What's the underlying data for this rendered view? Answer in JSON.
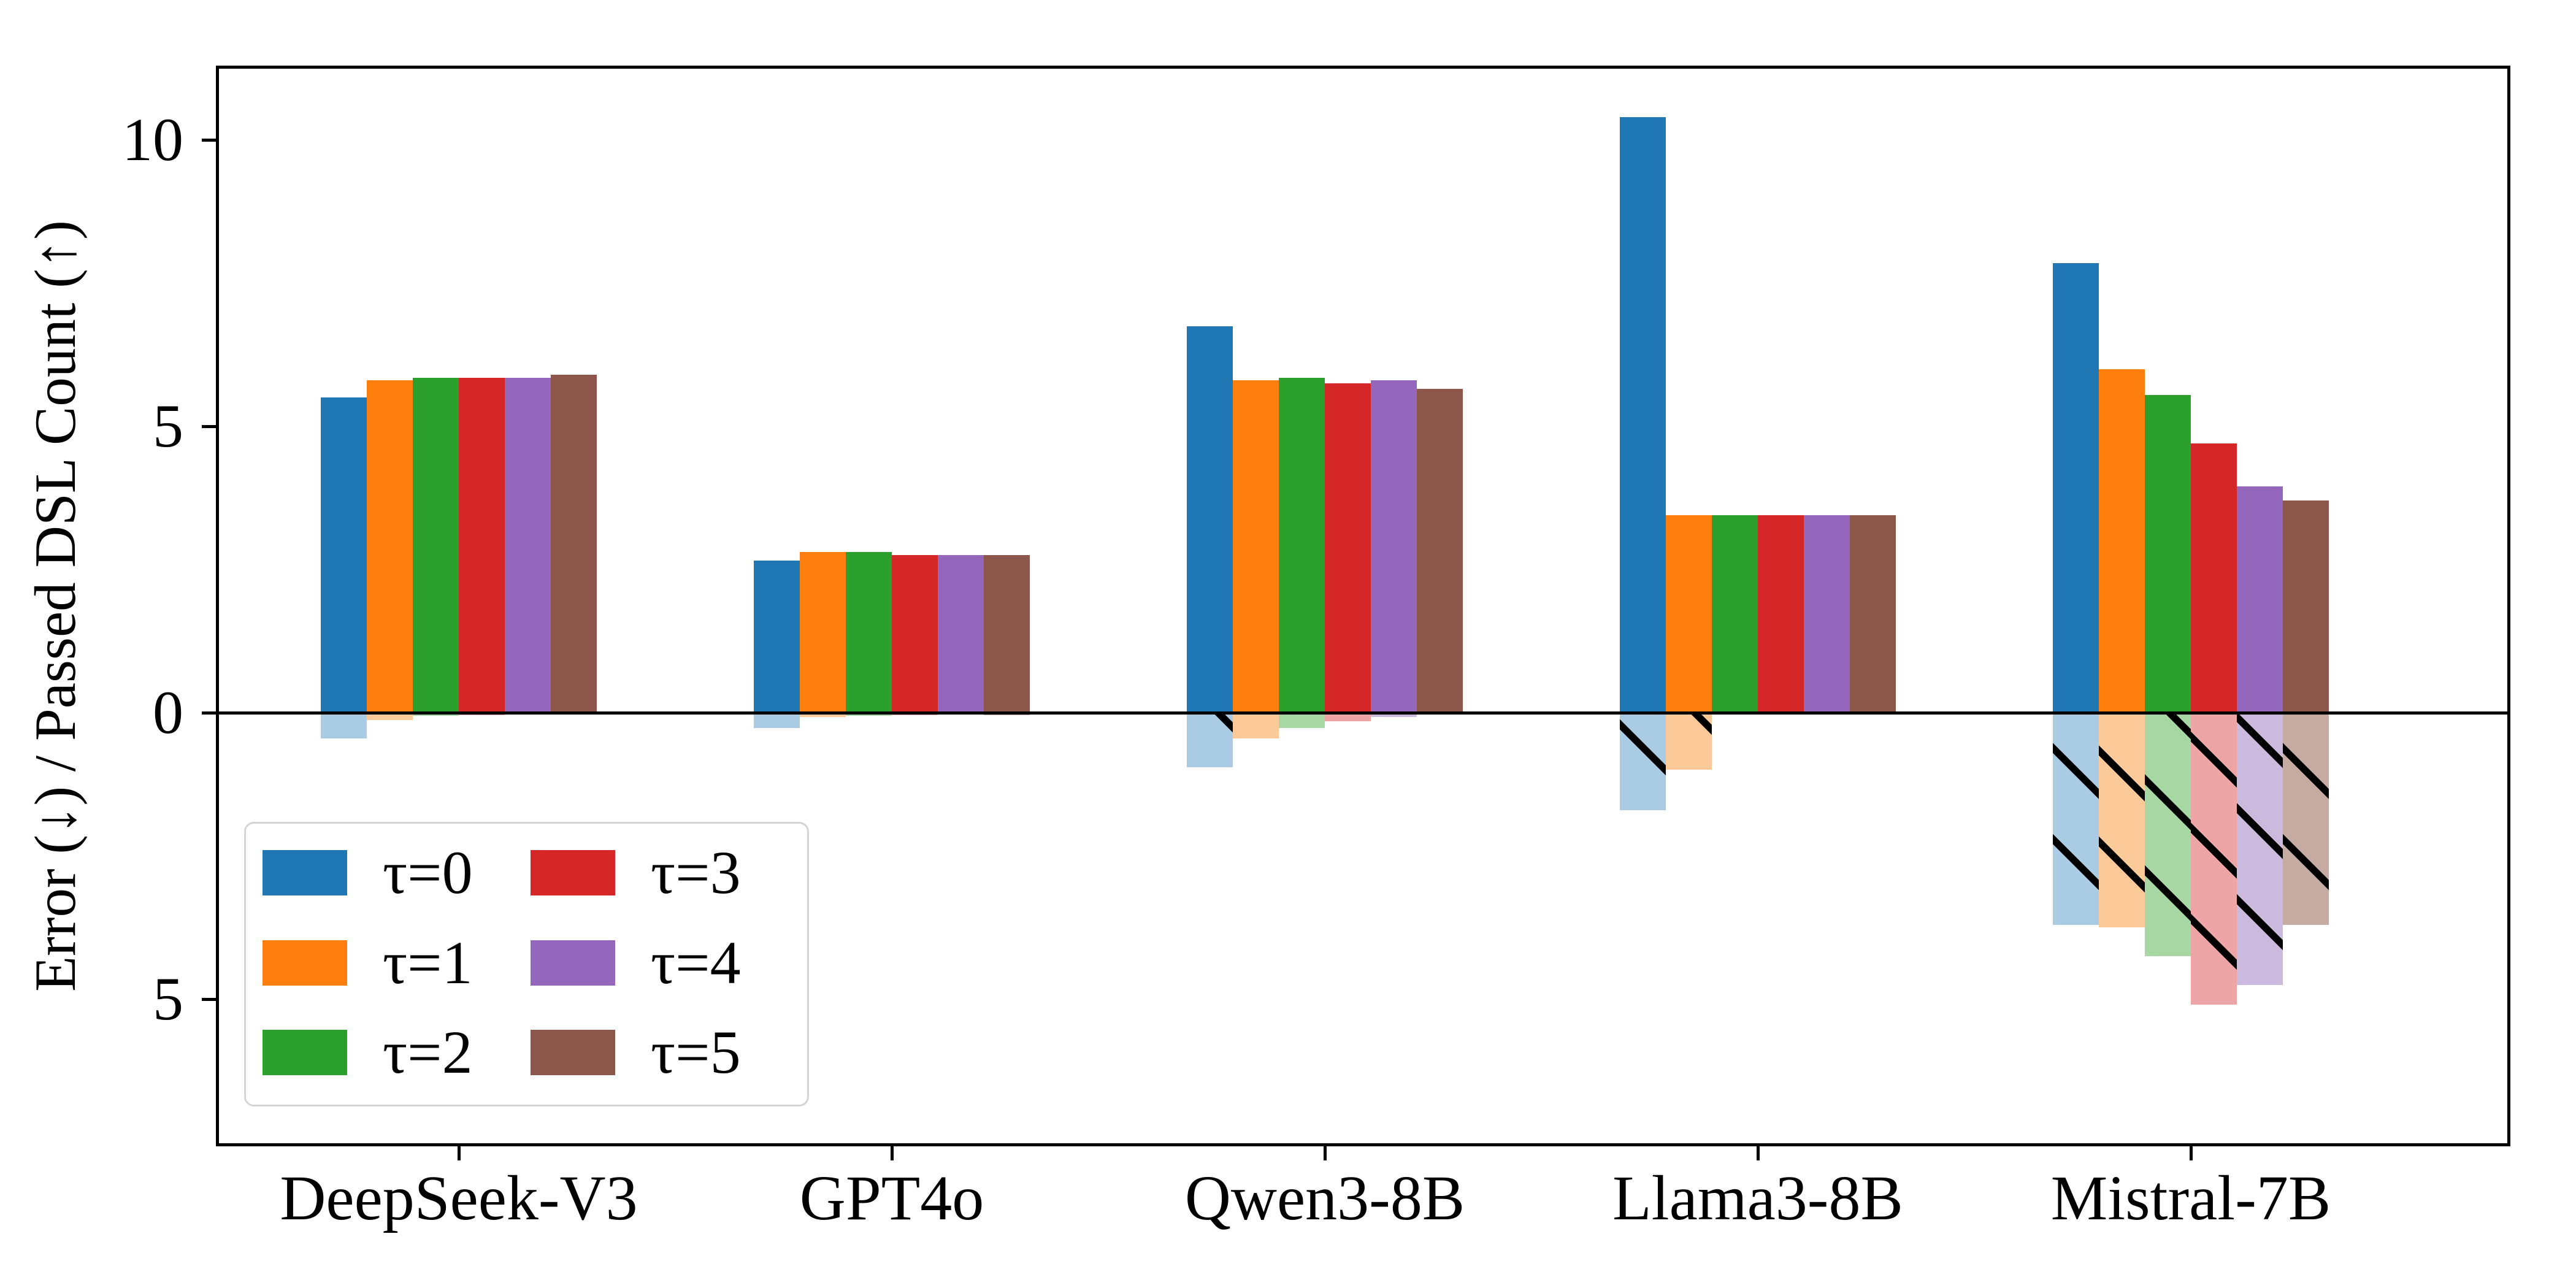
{
  "chart_data": {
    "type": "bar",
    "title": "",
    "ylabel": "Error (↓) / Passed DSL Count (↑)",
    "xlabel": "",
    "categories": [
      "DeepSeek-V3",
      "GPT4o",
      "Qwen3-8B",
      "Llama3-8B",
      "Mistral-7B"
    ],
    "yticks": [
      {
        "label": "10",
        "value": 10
      },
      {
        "label": "5",
        "value": 5
      },
      {
        "label": "0",
        "value": 0
      },
      {
        "label": "5",
        "value": -5
      }
    ],
    "ylim": [
      -7.5,
      11.2
    ],
    "grid": false,
    "legend_position": "lower left",
    "bar_style": {
      "positive": "solid above zero line",
      "negative": "translucent with black \\\\ hatching below zero line"
    },
    "series": [
      {
        "name": "τ=0",
        "color": "#1f77b4",
        "light_color": "#a9cbe4",
        "passed_dsl_count": [
          5.5,
          2.65,
          6.75,
          10.4,
          7.85
        ],
        "error": [
          0.45,
          0.27,
          0.95,
          1.7,
          3.7
        ]
      },
      {
        "name": "τ=1",
        "color": "#ff7f0e",
        "light_color": "#fcc998",
        "passed_dsl_count": [
          5.8,
          2.8,
          5.8,
          3.45,
          6.0
        ],
        "error": [
          0.13,
          0.08,
          0.45,
          1.0,
          3.75
        ]
      },
      {
        "name": "τ=2",
        "color": "#2ca02c",
        "light_color": "#a7d7a3",
        "passed_dsl_count": [
          5.85,
          2.8,
          5.85,
          3.45,
          5.55
        ],
        "error": [
          0.05,
          0.05,
          0.27,
          0,
          4.25
        ]
      },
      {
        "name": "τ=3",
        "color": "#d62728",
        "light_color": "#eda5a5",
        "passed_dsl_count": [
          5.85,
          2.75,
          5.75,
          3.45,
          4.7
        ],
        "error": [
          0.04,
          0.04,
          0.15,
          0,
          5.1
        ]
      },
      {
        "name": "τ=4",
        "color": "#9467bd",
        "light_color": "#cbbade",
        "passed_dsl_count": [
          5.85,
          2.75,
          5.8,
          3.45,
          3.95
        ],
        "error": [
          0.03,
          0.03,
          0.07,
          0,
          4.75
        ]
      },
      {
        "name": "τ=5",
        "color": "#8c564b",
        "light_color": "#c6aba3",
        "passed_dsl_count": [
          5.9,
          2.75,
          5.65,
          3.45,
          3.7
        ],
        "error": [
          0.03,
          0.04,
          0.03,
          0,
          3.7
        ]
      }
    ]
  }
}
